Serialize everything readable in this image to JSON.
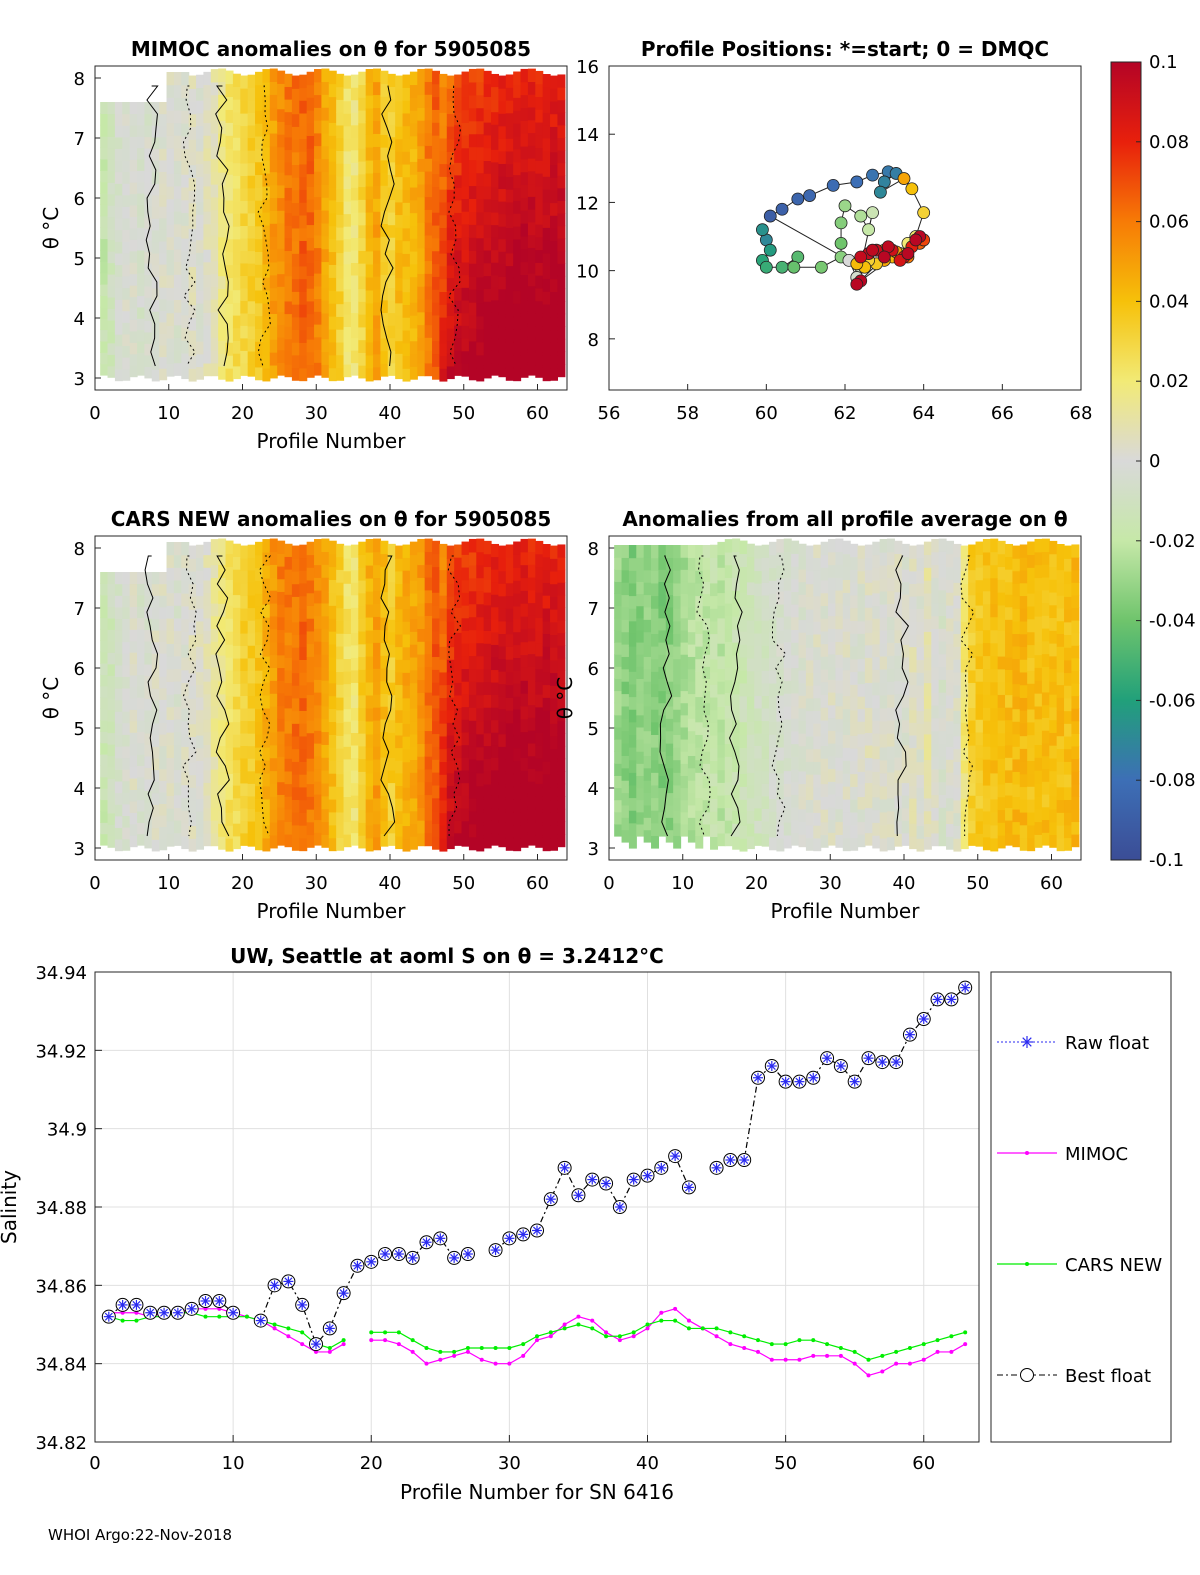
{
  "footer": "WHOI Argo:22-Nov-2018",
  "colors": {
    "raw_float": "#2a2af0",
    "mimoc": "#ff00ff",
    "cars_new": "#00ee00",
    "best_float": "#000000"
  },
  "chart_data": [
    {
      "type": "heatmap",
      "title": "MIMOC anomalies on θ  for 5905085",
      "xlabel": "Profile Number",
      "ylabel": "θ °C",
      "xlim": [
        0,
        64
      ],
      "ylim": [
        2.8,
        8.2
      ],
      "xticks": [
        0,
        10,
        20,
        30,
        40,
        50,
        60
      ],
      "yticks": [
        3,
        4,
        5,
        6,
        7,
        8
      ],
      "column_anomalies": [
        -0.018,
        -0.012,
        -0.004,
        -0.002,
        0.0,
        -0.006,
        -0.003,
        -0.002,
        0.0,
        0.0,
        -0.002,
        0.0,
        0.003,
        0.0,
        0.005,
        0.008,
        0.016,
        0.022,
        0.026,
        0.03,
        0.032,
        0.036,
        0.042,
        0.05,
        0.056,
        0.06,
        0.062,
        0.066,
        0.064,
        0.058,
        0.048,
        0.04,
        0.032,
        0.022,
        0.02,
        0.03,
        0.042,
        0.048,
        0.036,
        0.032,
        0.04,
        0.042,
        0.044,
        0.05,
        0.06,
        0.066,
        0.072,
        0.082,
        0.086,
        0.088,
        0.09,
        0.092,
        0.094,
        0.094,
        0.096,
        0.096,
        0.098,
        0.098,
        0.098,
        0.098,
        0.098,
        0.098,
        0.098
      ]
    },
    {
      "type": "scatter",
      "title": "Profile Positions: *=start; 0 = DMQC",
      "xlim": [
        56,
        68
      ],
      "ylim": [
        6.5,
        16
      ],
      "xticks": [
        56,
        58,
        60,
        62,
        64,
        66,
        68
      ],
      "yticks": [
        8,
        10,
        12,
        14,
        16
      ],
      "colorbar": {
        "range": [
          -0.1,
          0.1
        ],
        "ticks": [
          "0.1",
          "0.08",
          "0.06",
          "0.04",
          "0.02",
          "0",
          "-0.02",
          "-0.04",
          "-0.06",
          "-0.08",
          "-0.1"
        ]
      },
      "positions": [
        {
          "lon": 60.0,
          "lat": 10.9
        },
        {
          "lon": 59.9,
          "lat": 11.2
        },
        {
          "lon": 60.1,
          "lat": 10.6
        },
        {
          "lon": 59.9,
          "lat": 10.3
        },
        {
          "lon": 60.0,
          "lat": 10.1
        },
        {
          "lon": 60.4,
          "lat": 10.1
        },
        {
          "lon": 60.8,
          "lat": 10.4
        },
        {
          "lon": 60.7,
          "lat": 10.1
        },
        {
          "lon": 61.4,
          "lat": 10.1
        },
        {
          "lon": 61.9,
          "lat": 10.4
        },
        {
          "lon": 61.9,
          "lat": 10.8
        },
        {
          "lon": 61.9,
          "lat": 11.4
        },
        {
          "lon": 62.0,
          "lat": 11.9
        },
        {
          "lon": 62.4,
          "lat": 11.6
        },
        {
          "lon": 62.6,
          "lat": 11.2
        },
        {
          "lon": 62.7,
          "lat": 11.7
        },
        {
          "lon": 62.4,
          "lat": 10.1
        },
        {
          "lon": 62.3,
          "lat": 9.8
        },
        {
          "lon": 62.1,
          "lat": 10.3
        },
        {
          "lon": 60.1,
          "lat": 11.6
        },
        {
          "lon": 60.4,
          "lat": 11.8
        },
        {
          "lon": 60.8,
          "lat": 12.1
        },
        {
          "lon": 61.1,
          "lat": 12.2
        },
        {
          "lon": 61.7,
          "lat": 12.5
        },
        {
          "lon": 62.3,
          "lat": 12.6
        },
        {
          "lon": 62.7,
          "lat": 12.8
        },
        {
          "lon": 63.1,
          "lat": 12.9
        },
        {
          "lon": 63.3,
          "lat": 12.85
        },
        {
          "lon": 63.0,
          "lat": 12.6
        },
        {
          "lon": 62.9,
          "lat": 12.3
        },
        {
          "lon": 63.5,
          "lat": 12.7
        },
        {
          "lon": 63.7,
          "lat": 12.4
        },
        {
          "lon": 64.0,
          "lat": 11.7
        },
        {
          "lon": 63.8,
          "lat": 11.0
        },
        {
          "lon": 63.6,
          "lat": 10.8
        },
        {
          "lon": 63.4,
          "lat": 10.5
        },
        {
          "lon": 63.2,
          "lat": 10.4
        },
        {
          "lon": 63.0,
          "lat": 10.3
        },
        {
          "lon": 62.8,
          "lat": 10.2
        },
        {
          "lon": 62.6,
          "lat": 10.3
        },
        {
          "lon": 62.5,
          "lat": 10.1
        },
        {
          "lon": 62.3,
          "lat": 10.2
        },
        {
          "lon": 63.0,
          "lat": 10.6
        },
        {
          "lon": 63.3,
          "lat": 10.55
        },
        {
          "lon": 63.6,
          "lat": 10.4
        },
        {
          "lon": 63.9,
          "lat": 10.8
        },
        {
          "lon": 64.0,
          "lat": 10.9
        },
        {
          "lon": 63.7,
          "lat": 10.7
        },
        {
          "lon": 63.5,
          "lat": 10.4
        },
        {
          "lon": 63.4,
          "lat": 10.3
        },
        {
          "lon": 63.2,
          "lat": 10.6
        },
        {
          "lon": 62.8,
          "lat": 10.6
        },
        {
          "lon": 62.6,
          "lat": 10.5
        },
        {
          "lon": 62.4,
          "lat": 10.4
        },
        {
          "lon": 62.7,
          "lat": 10.6
        },
        {
          "lon": 63.1,
          "lat": 10.7
        },
        {
          "lon": 63.6,
          "lat": 10.5
        },
        {
          "lon": 63.9,
          "lat": 11.0
        },
        {
          "lon": 63.8,
          "lat": 10.9
        },
        {
          "lon": 62.4,
          "lat": 9.7
        },
        {
          "lon": 62.3,
          "lat": 9.6
        },
        {
          "lon": 63.0,
          "lat": 10.4
        }
      ]
    },
    {
      "type": "heatmap",
      "title": "CARS NEW anomalies on θ for 5905085",
      "xlabel": "Profile Number",
      "ylabel": "θ °C",
      "xlim": [
        0,
        64
      ],
      "ylim": [
        2.8,
        8.2
      ],
      "xticks": [
        0,
        10,
        20,
        30,
        40,
        50,
        60
      ],
      "yticks": [
        3,
        4,
        5,
        6,
        7,
        8
      ],
      "column_anomalies": [
        -0.016,
        -0.012,
        -0.006,
        -0.002,
        0.0,
        -0.004,
        -0.002,
        0.0,
        0.0,
        0.0,
        -0.002,
        0.0,
        0.003,
        0.002,
        0.006,
        0.012,
        0.018,
        0.024,
        0.028,
        0.032,
        0.034,
        0.038,
        0.044,
        0.052,
        0.058,
        0.06,
        0.062,
        0.064,
        0.06,
        0.056,
        0.048,
        0.04,
        0.032,
        0.024,
        0.022,
        0.034,
        0.044,
        0.05,
        0.04,
        0.034,
        0.042,
        0.046,
        0.048,
        0.052,
        0.062,
        0.068,
        0.074,
        0.084,
        0.088,
        0.09,
        0.092,
        0.094,
        0.094,
        0.096,
        0.096,
        0.098,
        0.098,
        0.098,
        0.098,
        0.098,
        0.098,
        0.098,
        0.098
      ]
    },
    {
      "type": "heatmap",
      "title": "Anomalies from all profile average on θ",
      "xlabel": "Profile Number",
      "ylabel": "θ °C",
      "xlim": [
        0,
        64
      ],
      "ylim": [
        2.8,
        8.2
      ],
      "xticks": [
        0,
        10,
        20,
        30,
        40,
        50,
        60
      ],
      "yticks": [
        3,
        4,
        5,
        6,
        7,
        8
      ],
      "column_anomalies": [
        -0.03,
        -0.034,
        -0.036,
        -0.034,
        -0.032,
        -0.034,
        -0.036,
        -0.034,
        -0.03,
        -0.028,
        -0.024,
        -0.022,
        -0.02,
        -0.02,
        -0.022,
        -0.02,
        -0.016,
        -0.014,
        -0.012,
        -0.01,
        -0.008,
        -0.006,
        -0.004,
        -0.004,
        -0.002,
        -0.002,
        0.0,
        0.0,
        0.0,
        0.0,
        0.0,
        0.0,
        0.0,
        0.0,
        0.004,
        0.002,
        0.0,
        0.0,
        0.0,
        0.0,
        0.004,
        0.0,
        0.008,
        0.0,
        -0.004,
        0.0,
        0.0,
        0.02,
        0.034,
        0.036,
        0.038,
        0.04,
        0.04,
        0.04,
        0.042,
        0.042,
        0.04,
        0.04,
        0.04,
        0.04,
        0.04,
        0.04,
        0.042
      ]
    },
    {
      "type": "line",
      "title": "UW, Seattle at aoml S on θ = 3.2412°C",
      "xlabel": "Profile Number for SN 6416",
      "ylabel": "Salinity",
      "xlim": [
        0,
        64
      ],
      "ylim": [
        34.82,
        34.94
      ],
      "xticks": [
        0,
        10,
        20,
        30,
        40,
        50,
        60
      ],
      "yticks": [
        "34.82",
        "34.84",
        "34.86",
        "34.88",
        "34.9",
        "34.92",
        "34.94"
      ],
      "legend": [
        "Raw float",
        "MIMOC",
        "CARS NEW",
        "Best float"
      ],
      "series": [
        {
          "name": "Best float",
          "x": [
            1,
            2,
            3,
            4,
            5,
            6,
            7,
            8,
            9,
            10,
            12,
            13,
            14,
            15,
            16,
            17,
            18,
            19,
            20,
            21,
            22,
            23,
            24,
            25,
            26,
            27,
            29,
            30,
            31,
            32,
            33,
            34,
            35,
            36,
            37,
            38,
            39,
            40,
            41,
            42,
            43,
            45,
            46,
            47,
            48,
            49,
            50,
            51,
            52,
            53,
            54,
            55,
            56,
            57,
            58,
            59,
            60,
            61,
            62,
            63
          ],
          "values": [
            34.852,
            34.855,
            34.855,
            34.853,
            34.853,
            34.853,
            34.854,
            34.856,
            34.856,
            34.853,
            34.851,
            34.86,
            34.861,
            34.855,
            34.845,
            34.849,
            34.858,
            34.865,
            34.866,
            34.868,
            34.868,
            34.867,
            34.871,
            34.872,
            34.867,
            34.868,
            34.869,
            34.872,
            34.873,
            34.874,
            34.882,
            34.89,
            34.883,
            34.887,
            34.886,
            34.88,
            34.887,
            34.888,
            34.89,
            34.893,
            34.885,
            34.89,
            34.892,
            34.892,
            34.913,
            34.916,
            34.912,
            34.912,
            34.913,
            34.918,
            34.916,
            34.912,
            34.918,
            34.917,
            34.917,
            34.924,
            34.928,
            34.933,
            34.933,
            34.936
          ]
        },
        {
          "name": "MIMOC",
          "x": [
            1,
            2,
            3,
            4,
            5,
            6,
            7,
            8,
            9,
            10,
            11,
            12,
            13,
            14,
            15,
            16,
            17,
            18,
            20,
            21,
            22,
            23,
            24,
            25,
            26,
            27,
            28,
            29,
            30,
            31,
            32,
            33,
            34,
            35,
            36,
            37,
            38,
            39,
            40,
            41,
            42,
            43,
            44,
            45,
            46,
            47,
            48,
            49,
            50,
            51,
            52,
            53,
            54,
            55,
            56,
            57,
            58,
            59,
            60,
            61,
            62,
            63
          ],
          "values": [
            34.853,
            34.853,
            34.853,
            34.852,
            34.853,
            34.853,
            34.854,
            34.854,
            34.854,
            34.853,
            34.852,
            34.851,
            34.849,
            34.847,
            34.845,
            34.843,
            34.843,
            34.845,
            34.846,
            34.846,
            34.845,
            34.843,
            34.84,
            34.841,
            34.842,
            34.843,
            34.841,
            34.84,
            34.84,
            34.842,
            34.846,
            34.847,
            34.85,
            34.852,
            34.851,
            34.848,
            34.846,
            34.847,
            34.849,
            34.853,
            34.854,
            34.851,
            34.849,
            34.847,
            34.845,
            34.844,
            34.843,
            34.841,
            34.841,
            34.841,
            34.842,
            34.842,
            34.842,
            34.84,
            34.837,
            34.838,
            34.84,
            34.84,
            34.841,
            34.843,
            34.843,
            34.845
          ]
        },
        {
          "name": "CARS NEW",
          "x": [
            1,
            2,
            3,
            4,
            5,
            6,
            7,
            8,
            9,
            10,
            11,
            12,
            13,
            14,
            15,
            16,
            17,
            18,
            20,
            21,
            22,
            23,
            24,
            25,
            26,
            27,
            28,
            29,
            30,
            31,
            32,
            33,
            34,
            35,
            36,
            37,
            38,
            39,
            40,
            41,
            42,
            43,
            44,
            45,
            46,
            47,
            48,
            49,
            50,
            51,
            52,
            53,
            54,
            55,
            56,
            57,
            58,
            59,
            60,
            61,
            62,
            63
          ],
          "values": [
            34.852,
            34.851,
            34.851,
            34.852,
            34.852,
            34.853,
            34.853,
            34.852,
            34.852,
            34.852,
            34.852,
            34.851,
            34.85,
            34.849,
            34.848,
            34.845,
            34.844,
            34.846,
            34.848,
            34.848,
            34.848,
            34.846,
            34.844,
            34.843,
            34.843,
            34.844,
            34.844,
            34.844,
            34.844,
            34.845,
            34.847,
            34.848,
            34.849,
            34.85,
            34.849,
            34.847,
            34.847,
            34.848,
            34.85,
            34.851,
            34.851,
            34.849,
            34.849,
            34.849,
            34.848,
            34.847,
            34.846,
            34.845,
            34.845,
            34.846,
            34.846,
            34.845,
            34.844,
            34.843,
            34.841,
            34.842,
            34.843,
            34.844,
            34.845,
            34.846,
            34.847,
            34.848
          ]
        },
        {
          "name": "Raw float",
          "x": [
            1,
            2,
            3,
            4,
            5,
            6,
            7,
            8,
            9,
            10,
            12,
            13,
            14,
            15,
            16,
            17,
            18,
            19,
            20,
            21,
            22,
            23,
            24,
            25,
            26,
            27,
            29,
            30,
            31,
            32,
            33,
            34,
            35,
            36,
            37,
            38,
            39,
            40,
            41,
            42,
            43,
            45,
            46,
            47,
            48,
            49,
            50,
            51,
            52,
            53,
            54,
            55,
            56,
            57,
            58,
            59,
            60,
            61,
            62,
            63
          ],
          "values": [
            34.852,
            34.855,
            34.855,
            34.853,
            34.853,
            34.853,
            34.854,
            34.856,
            34.856,
            34.853,
            34.851,
            34.86,
            34.861,
            34.855,
            34.845,
            34.849,
            34.858,
            34.865,
            34.866,
            34.868,
            34.868,
            34.867,
            34.871,
            34.872,
            34.867,
            34.868,
            34.869,
            34.872,
            34.873,
            34.874,
            34.882,
            34.89,
            34.883,
            34.887,
            34.886,
            34.88,
            34.887,
            34.888,
            34.89,
            34.893,
            34.885,
            34.89,
            34.892,
            34.892,
            34.913,
            34.916,
            34.912,
            34.912,
            34.913,
            34.918,
            34.916,
            34.912,
            34.918,
            34.917,
            34.917,
            34.924,
            34.928,
            34.933,
            34.933,
            34.936
          ]
        }
      ]
    }
  ]
}
